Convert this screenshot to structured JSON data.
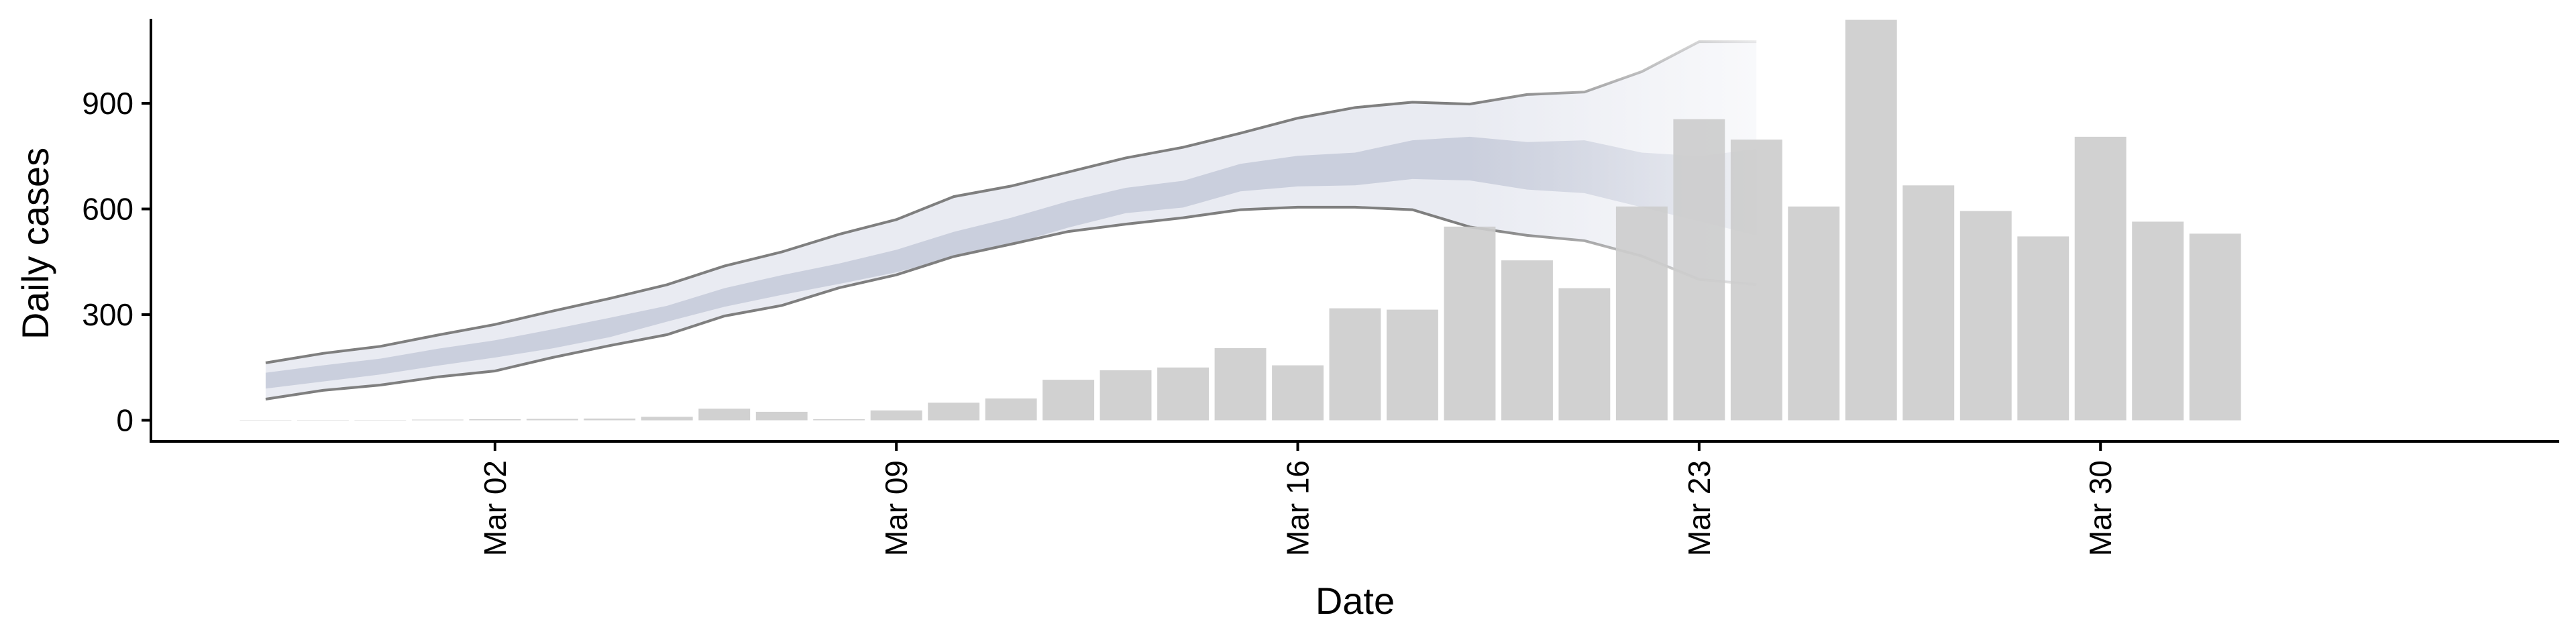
{
  "chart_data": {
    "type": "bar",
    "xlabel": "Date",
    "ylabel": "Daily cases",
    "ylim": [
      -60,
      1140
    ],
    "y_ticks": [
      0,
      300,
      600,
      900
    ],
    "y_tick_labels": [
      "0",
      "300",
      "600",
      "900"
    ],
    "x_ticks": [
      {
        "date": "2020-03-02",
        "label": "Mar 02"
      },
      {
        "date": "2020-03-09",
        "label": "Mar 09"
      },
      {
        "date": "2020-03-16",
        "label": "Mar 16"
      },
      {
        "date": "2020-03-23",
        "label": "Mar 23"
      },
      {
        "date": "2020-03-30",
        "label": "Mar 30"
      }
    ],
    "xlim": [
      "2020-02-25",
      "2020-04-07"
    ],
    "grid": false,
    "colors": {
      "bars": "#cccccc",
      "band_outer": "#e9ebf2",
      "band_inner": "#c5cad9",
      "band_lines": "#7f7f7f"
    },
    "series": [
      {
        "kind": "bars",
        "x": [
          "2020-02-27",
          "2020-02-28",
          "2020-02-29",
          "2020-03-01",
          "2020-03-02",
          "2020-03-03",
          "2020-03-04",
          "2020-03-05",
          "2020-03-06",
          "2020-03-07",
          "2020-03-08",
          "2020-03-09",
          "2020-03-10",
          "2020-03-11",
          "2020-03-12",
          "2020-03-13",
          "2020-03-14",
          "2020-03-15",
          "2020-03-16",
          "2020-03-17",
          "2020-03-18",
          "2020-03-19",
          "2020-03-20",
          "2020-03-21",
          "2020-03-22",
          "2020-03-23",
          "2020-03-24",
          "2020-03-25",
          "2020-03-26",
          "2020-03-27",
          "2020-03-28",
          "2020-03-29",
          "2020-03-30",
          "2020-03-31",
          "2020-04-01",
          "2020-04-02"
        ],
        "values": [
          1,
          1,
          1,
          2,
          3,
          4,
          5,
          10,
          33,
          24,
          3,
          28,
          50,
          62,
          115,
          142,
          150,
          205,
          156,
          318,
          314,
          550,
          454,
          375,
          607,
          855,
          797,
          607,
          1137,
          667,
          594,
          522,
          805,
          564,
          530,
          0
        ]
      },
      {
        "kind": "estimate_band",
        "x": [
          "2020-02-27",
          "2020-02-28",
          "2020-02-29",
          "2020-03-01",
          "2020-03-02",
          "2020-03-03",
          "2020-03-04",
          "2020-03-05",
          "2020-03-06",
          "2020-03-07",
          "2020-03-08",
          "2020-03-09",
          "2020-03-10",
          "2020-03-11",
          "2020-03-12",
          "2020-03-13",
          "2020-03-14",
          "2020-03-15",
          "2020-03-16",
          "2020-03-17",
          "2020-03-18",
          "2020-03-19",
          "2020-03-20",
          "2020-03-21",
          "2020-03-22",
          "2020-03-23",
          "2020-03-24"
        ],
        "lower90": [
          60,
          85,
          100,
          123,
          140,
          178,
          212,
          243,
          296,
          326,
          376,
          413,
          465,
          500,
          536,
          557,
          575,
          598,
          605,
          605,
          598,
          549,
          525,
          510,
          466,
          400,
          385
        ],
        "upper90": [
          163,
          190,
          210,
          242,
          272,
          310,
          346,
          385,
          438,
          478,
          528,
          570,
          635,
          665,
          705,
          745,
          775,
          815,
          858,
          888,
          903,
          898,
          925,
          932,
          990,
          1075,
          1075
        ],
        "lower50": [
          90,
          110,
          130,
          155,
          178,
          204,
          236,
          280,
          322,
          356,
          387,
          420,
          463,
          500,
          547,
          588,
          604,
          650,
          664,
          667,
          685,
          681,
          655,
          645,
          605,
          565,
          525
        ],
        "upper50": [
          135,
          156,
          175,
          203,
          227,
          258,
          291,
          325,
          375,
          412,
          445,
          484,
          535,
          575,
          622,
          660,
          680,
          728,
          751,
          760,
          795,
          805,
          790,
          795,
          760,
          750,
          770
        ],
        "fade_start": "2020-03-19"
      }
    ]
  }
}
